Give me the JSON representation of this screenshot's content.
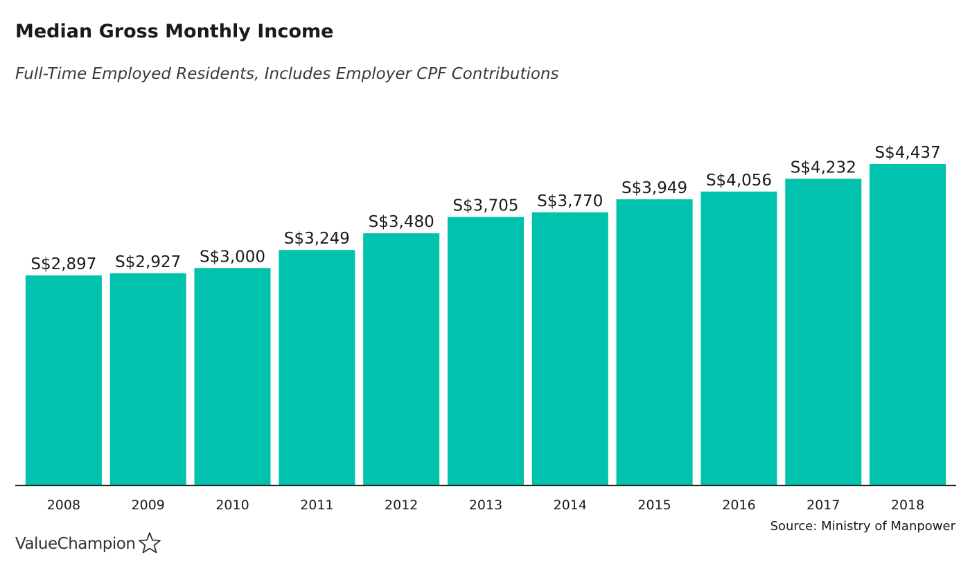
{
  "header": {
    "title": "Median Gross Monthly Income",
    "subtitle": "Full-Time Employed Residents, Includes Employer CPF Contributions"
  },
  "footer": {
    "source": "Source: Ministry of Manpower",
    "brand": "ValueChampion",
    "brand_icon": "star-outline-icon"
  },
  "colors": {
    "bar": "#00c2ad",
    "axis": "#1a1a1a",
    "text": "#1a1a1a"
  },
  "chart_data": {
    "type": "bar",
    "title": "Median Gross Monthly Income",
    "subtitle": "Full-Time Employed Residents, Includes Employer CPF Contributions",
    "xlabel": "",
    "ylabel": "",
    "categories": [
      "2008",
      "2009",
      "2010",
      "2011",
      "2012",
      "2013",
      "2014",
      "2015",
      "2016",
      "2017",
      "2018"
    ],
    "values": [
      2897,
      2927,
      3000,
      3249,
      3480,
      3705,
      3770,
      3949,
      4056,
      4232,
      4437
    ],
    "value_labels": [
      "S$2,897",
      "S$2,927",
      "S$3,000",
      "S$3,249",
      "S$3,480",
      "S$3,705",
      "S$3,770",
      "S$3,949",
      "S$4,056",
      "S$4,232",
      "S$4,437"
    ],
    "ylim": [
      0,
      4437
    ],
    "grid": false,
    "legend": "none"
  }
}
